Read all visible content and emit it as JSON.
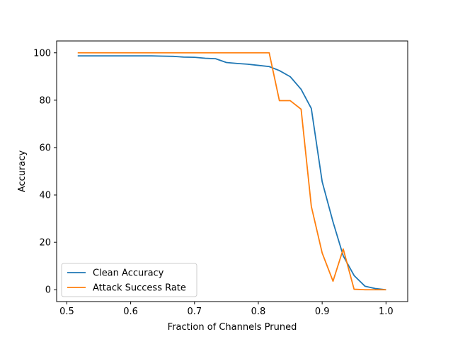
{
  "chart_data": {
    "type": "line",
    "title": "",
    "xlabel": "Fraction of Channels Pruned",
    "ylabel": "Accuracy",
    "xlim": [
      0.484,
      1.034
    ],
    "ylim": [
      -5,
      105
    ],
    "xticks": [
      0.5,
      0.6,
      0.7,
      0.8,
      0.9,
      1.0
    ],
    "xtick_labels": [
      "0.5",
      "0.6",
      "0.7",
      "0.8",
      "0.9",
      "1.0"
    ],
    "yticks": [
      0,
      20,
      40,
      60,
      80,
      100
    ],
    "ytick_labels": [
      "0",
      "20",
      "40",
      "60",
      "80",
      "100"
    ],
    "grid": false,
    "legend_position": "lower-left",
    "series": [
      {
        "name": "Clean Accuracy",
        "color": "#1f77b4",
        "x": [
          0.517,
          0.533,
          0.55,
          0.567,
          0.583,
          0.6,
          0.617,
          0.633,
          0.65,
          0.667,
          0.683,
          0.7,
          0.717,
          0.733,
          0.75,
          0.767,
          0.783,
          0.8,
          0.817,
          0.833,
          0.85,
          0.867,
          0.883,
          0.9,
          0.917,
          0.933,
          0.95,
          0.967,
          0.983,
          1.0
        ],
        "y": [
          98.7,
          98.7,
          98.7,
          98.7,
          98.7,
          98.7,
          98.7,
          98.7,
          98.6,
          98.5,
          98.2,
          98.1,
          97.7,
          97.5,
          95.9,
          95.5,
          95.2,
          94.7,
          94.2,
          92.5,
          89.9,
          84.6,
          76.5,
          45.6,
          28.6,
          14.3,
          6.0,
          1.5,
          0.5,
          0.0
        ]
      },
      {
        "name": "Attack Success Rate",
        "color": "#ff7f0e",
        "x": [
          0.517,
          0.533,
          0.55,
          0.567,
          0.583,
          0.6,
          0.617,
          0.633,
          0.65,
          0.667,
          0.683,
          0.7,
          0.717,
          0.733,
          0.75,
          0.767,
          0.783,
          0.8,
          0.817,
          0.833,
          0.85,
          0.867,
          0.883,
          0.9,
          0.917,
          0.933,
          0.95,
          0.967,
          0.983,
          1.0
        ],
        "y": [
          100,
          100,
          100,
          100,
          100,
          100,
          100,
          100,
          100,
          100,
          100,
          100,
          100,
          100,
          100,
          100,
          100,
          100,
          100,
          79.8,
          79.8,
          76.2,
          35.2,
          15.5,
          3.6,
          17.2,
          0.2,
          0.0,
          0.0,
          0.0
        ]
      }
    ]
  }
}
